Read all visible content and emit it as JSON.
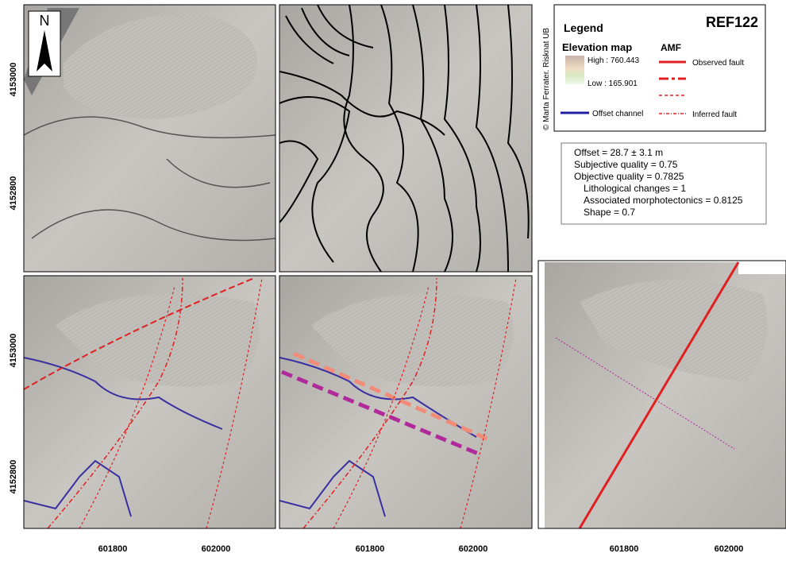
{
  "north_arrow": "N",
  "map_axes": {
    "y_ticks": [
      4153000,
      4152800
    ],
    "x_ticks": [
      601800,
      602000
    ]
  },
  "legend": {
    "title": "Legend",
    "map_id": "REF122",
    "elevation_heading": "Elevation map",
    "amf_heading": "AMF",
    "high": "High : 760.443",
    "low": "Low : 165.901",
    "observed_fault": "Observed fault",
    "offset_channel": "Offset channel",
    "inferred_fault": "Inferred fault"
  },
  "copyright": "© Marta Ferrater. Risknat UB",
  "info": {
    "lines": [
      "Offset = 28.7 ± 3.1 m",
      "Subjective quality = 0.75",
      "Objective quality = 0.7825",
      "Lithological changes = 1",
      "Associated morphotectonics = 0.8125",
      "Shape = 0.7"
    ]
  }
}
